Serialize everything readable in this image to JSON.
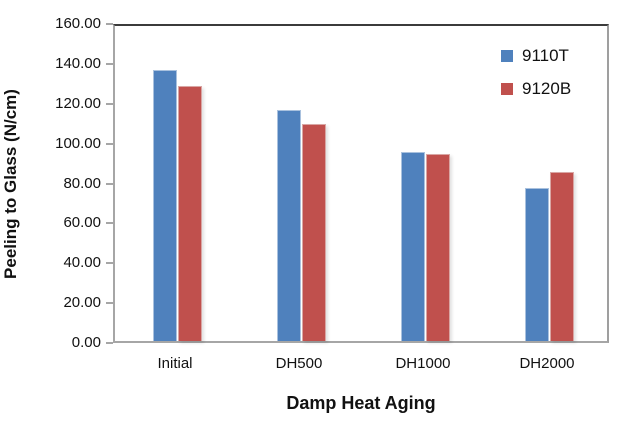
{
  "chart_data": {
    "type": "bar",
    "title": "",
    "xlabel": "Damp Heat Aging",
    "ylabel": "Peeling to Glass (N/cm)",
    "categories": [
      "Initial",
      "DH500",
      "DH1000",
      "DH2000"
    ],
    "series": [
      {
        "name": "9110T",
        "color": "#4f81bd",
        "border_color": "#a9c1de",
        "values": [
          137,
          117,
          96,
          78
        ]
      },
      {
        "name": "9120B",
        "color": "#c0504d",
        "border_color": "#d9a6a4",
        "values": [
          129,
          110,
          95,
          86
        ]
      }
    ],
    "ylim": [
      0,
      160
    ],
    "yticks": [
      {
        "v": 160,
        "label": "160.00"
      },
      {
        "v": 140,
        "label": "140.00"
      },
      {
        "v": 120,
        "label": "120.00"
      },
      {
        "v": 100,
        "label": "100.00"
      },
      {
        "v": 80,
        "label": "80.00"
      },
      {
        "v": 60,
        "label": "60.00"
      },
      {
        "v": 40,
        "label": "40.00"
      },
      {
        "v": 20,
        "label": "20.00"
      },
      {
        "v": 0,
        "label": "0.00"
      }
    ],
    "grid": false,
    "legend_position": "top-right-inside",
    "axis_colors": {
      "plot_border_top": "#3b3b3b",
      "axis_line": "#a6a6a6"
    }
  }
}
